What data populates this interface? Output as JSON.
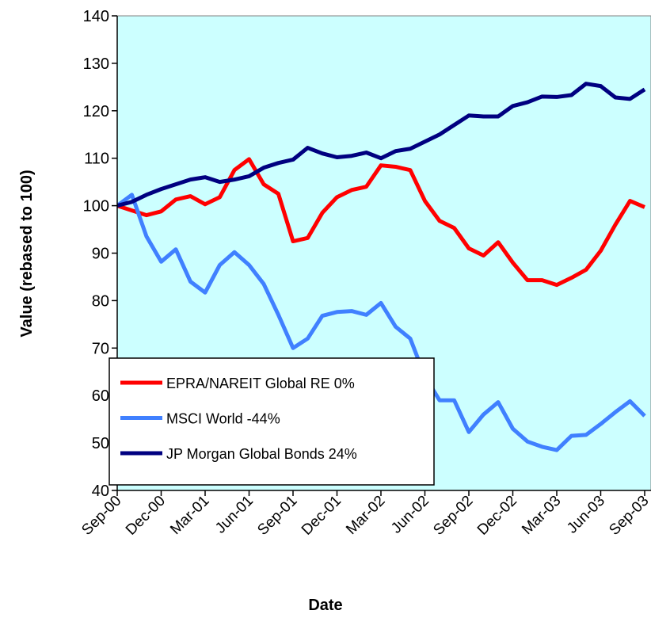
{
  "chart_data": {
    "type": "line",
    "x_label": "Date",
    "y_label": "Value (rebased to 100)",
    "categories": [
      "Sep-00",
      null,
      null,
      "Dec-00",
      null,
      null,
      "Mar-01",
      null,
      null,
      "Jun-01",
      null,
      null,
      "Sep-01",
      null,
      null,
      "Dec-01",
      null,
      null,
      "Mar-02",
      null,
      null,
      "Jun-02",
      null,
      null,
      "Sep-02",
      null,
      null,
      "Dec-02",
      null,
      null,
      "Mar-03",
      null,
      null,
      "Jun-03",
      null,
      null,
      "Sep-03"
    ],
    "series": [
      {
        "name": "EPRA/NAREIT Global RE 0%",
        "color": "#ff0000",
        "values": [
          100,
          99,
          98,
          98.8,
          101.3,
          102,
          100.3,
          101.8,
          107.5,
          109.8,
          104.5,
          102.5,
          92.5,
          93.2,
          98.5,
          101.8,
          103.3,
          104,
          108.5,
          108.2,
          107.5,
          101,
          96.8,
          95.3,
          91,
          89.5,
          92.3,
          88,
          84.3,
          84.3,
          83.3,
          84.8,
          86.5,
          90.5,
          96,
          101,
          99.7
        ]
      },
      {
        "name": "MSCI World -44%",
        "color": "#4080ff",
        "values": [
          100,
          102.3,
          93.5,
          88.2,
          90.8,
          84,
          81.7,
          87.5,
          90.2,
          87.5,
          83.5,
          77,
          70,
          72,
          76.8,
          77.6,
          77.8,
          77,
          79.5,
          74.5,
          72,
          64,
          59,
          59,
          52.3,
          56,
          58.6,
          53,
          50.3,
          49.2,
          48.5,
          51.5,
          51.7,
          54,
          56.5,
          58.8,
          55.7
        ]
      },
      {
        "name": "JP Morgan Global Bonds 24%",
        "color": "#000080",
        "values": [
          100,
          100.8,
          102.3,
          103.5,
          104.5,
          105.5,
          106,
          105,
          105.5,
          106.2,
          108,
          109,
          109.7,
          112.2,
          111,
          110.2,
          110.5,
          111.2,
          110,
          111.5,
          112,
          113.5,
          115,
          117,
          119,
          118.8,
          118.8,
          121,
          121.8,
          123,
          122.9,
          123.3,
          125.7,
          125.2,
          122.8,
          122.5,
          124.5
        ]
      }
    ],
    "ylim": [
      40,
      140
    ],
    "yticks": [
      40,
      50,
      60,
      70,
      80,
      90,
      100,
      110,
      120,
      130,
      140
    ],
    "plot_background": "#ccffff",
    "legend": "lower left"
  }
}
